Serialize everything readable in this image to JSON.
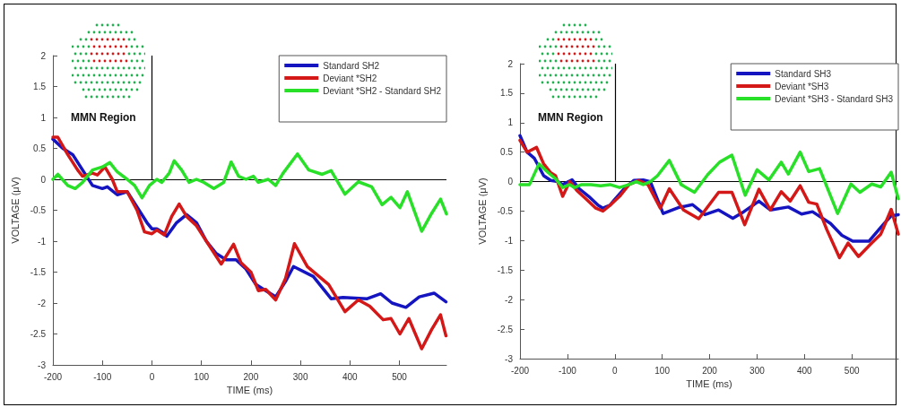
{
  "chart_data": [
    {
      "type": "line",
      "xlabel": "TIME (ms)",
      "ylabel": "VOLTAGE (μV)",
      "xlim": [
        -200,
        595
      ],
      "xticks": [
        -200,
        -100,
        0,
        100,
        200,
        300,
        400,
        500
      ],
      "ylim": [
        -3,
        2
      ],
      "yticks": [
        -3,
        -2.5,
        -2,
        -1.5,
        -1,
        -0.5,
        0,
        0.5,
        1,
        1.5,
        2
      ],
      "grid": false,
      "legend": "top right",
      "annotations": [
        "MMN Region"
      ],
      "ref_lines": [
        {
          "axis": "y",
          "value": 0,
          "color": "#000000"
        },
        {
          "axis": "x",
          "value": 0,
          "color": "#000000"
        }
      ],
      "series": [
        {
          "name": "Standard SH2",
          "color": "#1414c0",
          "x": [
            -200,
            -180,
            -160,
            -140,
            -120,
            -100,
            -90,
            -70,
            -50,
            -30,
            -10,
            0,
            10,
            20,
            30,
            50,
            70,
            90,
            110,
            130,
            150,
            170,
            190,
            210,
            230,
            250,
            270,
            286,
            326,
            362,
            386,
            435,
            462,
            485,
            513,
            540,
            570,
            594
          ],
          "values": [
            0.65,
            0.5,
            0.4,
            0.15,
            -0.1,
            -0.15,
            -0.12,
            -0.25,
            -0.2,
            -0.45,
            -0.7,
            -0.8,
            -0.8,
            -0.85,
            -0.92,
            -0.7,
            -0.57,
            -0.7,
            -1.0,
            -1.2,
            -1.3,
            -1.3,
            -1.45,
            -1.7,
            -1.8,
            -1.9,
            -1.65,
            -1.41,
            -1.57,
            -1.93,
            -1.91,
            -1.93,
            -1.85,
            -2.0,
            -2.07,
            -1.9,
            -1.84,
            -1.98
          ]
        },
        {
          "name": "Deviant *SH2",
          "color": "#d41818",
          "x": [
            -200,
            -190,
            -170,
            -150,
            -140,
            -120,
            -110,
            -95,
            -80,
            -70,
            -50,
            -30,
            -15,
            0,
            10,
            25,
            40,
            55,
            70,
            90,
            110,
            140,
            165,
            180,
            200,
            215,
            230,
            250,
            270,
            288,
            314,
            357,
            390,
            417,
            440,
            467,
            483,
            501,
            519,
            545,
            565,
            583,
            594
          ],
          "values": [
            0.68,
            0.68,
            0.4,
            0.15,
            0.05,
            0.1,
            0.07,
            0.2,
            0.0,
            -0.2,
            -0.2,
            -0.5,
            -0.85,
            -0.88,
            -0.82,
            -0.9,
            -0.6,
            -0.4,
            -0.6,
            -0.75,
            -1.0,
            -1.37,
            -1.05,
            -1.35,
            -1.5,
            -1.8,
            -1.78,
            -1.95,
            -1.6,
            -1.04,
            -1.41,
            -1.7,
            -2.14,
            -1.95,
            -2.05,
            -2.27,
            -2.25,
            -2.5,
            -2.25,
            -2.74,
            -2.43,
            -2.19,
            -2.53
          ]
        },
        {
          "name": "Deviant *SH2 - Standard SH2",
          "color": "#28e028",
          "x": [
            -200,
            -190,
            -170,
            -155,
            -140,
            -120,
            -100,
            -85,
            -70,
            -50,
            -35,
            -20,
            -5,
            10,
            20,
            35,
            45,
            60,
            75,
            90,
            105,
            125,
            145,
            160,
            175,
            190,
            205,
            215,
            235,
            250,
            265,
            294,
            317,
            344,
            362,
            390,
            417,
            444,
            465,
            483,
            501,
            516,
            545,
            565,
            583,
            595
          ],
          "values": [
            0.0,
            0.08,
            -0.1,
            -0.15,
            -0.05,
            0.15,
            0.2,
            0.27,
            0.12,
            0.0,
            -0.1,
            -0.3,
            -0.1,
            0.0,
            -0.05,
            0.1,
            0.3,
            0.15,
            -0.05,
            0.0,
            -0.05,
            -0.15,
            -0.05,
            0.28,
            0.05,
            0.0,
            0.05,
            -0.05,
            0.0,
            -0.1,
            0.1,
            0.41,
            0.15,
            0.08,
            0.14,
            -0.24,
            -0.04,
            -0.12,
            -0.41,
            -0.29,
            -0.46,
            -0.2,
            -0.84,
            -0.55,
            -0.32,
            -0.56
          ]
        }
      ]
    },
    {
      "type": "line",
      "xlabel": "TIME (ms)",
      "ylabel": "VOLTAGE (μV)",
      "xlim": [
        -200,
        598
      ],
      "xticks": [
        -200,
        -100,
        0,
        100,
        200,
        300,
        400,
        500
      ],
      "ylim": [
        -3,
        2
      ],
      "yticks": [
        -3,
        -2.5,
        -2,
        -1.5,
        -1,
        -0.5,
        0,
        0.5,
        1,
        1.5,
        2
      ],
      "grid": false,
      "legend": "top right",
      "annotations": [
        "MMN Region"
      ],
      "ref_lines": [
        {
          "axis": "y",
          "value": 0,
          "color": "#000000"
        },
        {
          "axis": "x",
          "value": 0,
          "color": "#000000"
        }
      ],
      "series": [
        {
          "name": "Standard SH3",
          "color": "#1414c0",
          "x": [
            -200,
            -185,
            -170,
            -150,
            -135,
            -120,
            -110,
            -90,
            -75,
            -55,
            -35,
            -25,
            -10,
            0,
            20,
            40,
            60,
            75,
            102,
            134,
            164,
            190,
            219,
            249,
            272,
            304,
            328,
            366,
            394,
            417,
            455,
            479,
            502,
            536,
            568,
            583,
            598
          ],
          "values": [
            0.78,
            0.5,
            0.4,
            0.1,
            0.02,
            0.0,
            -0.05,
            0.03,
            -0.12,
            -0.25,
            -0.4,
            -0.45,
            -0.4,
            -0.3,
            -0.12,
            0.02,
            0.03,
            0.0,
            -0.54,
            -0.44,
            -0.39,
            -0.56,
            -0.48,
            -0.62,
            -0.51,
            -0.33,
            -0.48,
            -0.43,
            -0.55,
            -0.51,
            -0.71,
            -0.91,
            -1.01,
            -1.01,
            -0.71,
            -0.58,
            -0.56
          ]
        },
        {
          "name": "Deviant *SH3",
          "color": "#d41818",
          "x": [
            -200,
            -185,
            -165,
            -150,
            -135,
            -125,
            -110,
            -95,
            -80,
            -60,
            -40,
            -25,
            -10,
            10,
            30,
            50,
            70,
            96,
            115,
            145,
            177,
            219,
            247,
            274,
            304,
            328,
            351,
            370,
            391,
            409,
            426,
            447,
            474,
            492,
            514,
            542,
            561,
            583,
            598
          ],
          "values": [
            0.7,
            0.5,
            0.58,
            0.3,
            0.15,
            0.1,
            -0.25,
            0.0,
            -0.15,
            -0.3,
            -0.45,
            -0.5,
            -0.4,
            -0.25,
            -0.05,
            0.02,
            -0.05,
            -0.45,
            -0.12,
            -0.48,
            -0.63,
            -0.18,
            -0.18,
            -0.73,
            -0.13,
            -0.48,
            -0.17,
            -0.33,
            -0.07,
            -0.35,
            -0.38,
            -0.81,
            -1.29,
            -1.04,
            -1.27,
            -1.04,
            -0.89,
            -0.47,
            -0.89
          ]
        },
        {
          "name": "Deviant *SH3 - Standard SH3",
          "color": "#28e028",
          "x": [
            -200,
            -180,
            -160,
            -140,
            -125,
            -110,
            -95,
            -85,
            -70,
            -50,
            -30,
            -10,
            10,
            30,
            45,
            60,
            75,
            90,
            115,
            140,
            168,
            196,
            221,
            247,
            275,
            300,
            325,
            351,
            366,
            391,
            409,
            432,
            470,
            498,
            517,
            542,
            561,
            583,
            598
          ],
          "values": [
            -0.05,
            -0.05,
            0.3,
            0.15,
            0.05,
            -0.1,
            -0.05,
            -0.1,
            -0.05,
            -0.05,
            -0.07,
            -0.05,
            -0.1,
            -0.05,
            0.0,
            -0.05,
            0.0,
            0.1,
            0.36,
            -0.05,
            -0.18,
            0.12,
            0.33,
            0.45,
            -0.23,
            0.2,
            0.03,
            0.33,
            0.13,
            0.5,
            0.17,
            0.22,
            -0.54,
            -0.04,
            -0.18,
            -0.04,
            -0.09,
            0.16,
            -0.29
          ]
        }
      ]
    }
  ]
}
